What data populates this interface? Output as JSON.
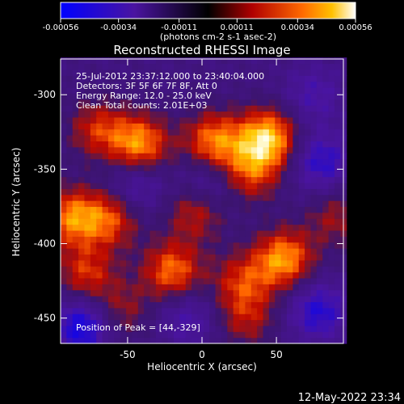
{
  "chart_data": {
    "type": "heatmap",
    "title": "Reconstructed RHESSI Image",
    "xlabel": "Heliocentric X (arcsec)",
    "ylabel": "Heliocentric Y (arcsec)",
    "xlim": [
      -95,
      95
    ],
    "ylim": [
      -467,
      -276
    ],
    "x_ticks": [
      -50,
      0,
      50
    ],
    "y_ticks": [
      -300,
      -350,
      -400,
      -450
    ],
    "colorbar": {
      "ticks": [
        "-0.00056",
        "-0.00034",
        "-0.00011",
        "0.00011",
        "0.00034",
        "0.00056"
      ],
      "unit_label": "(photons cm-2 s-1 asec-2)",
      "range": [
        -0.00056,
        0.00056
      ]
    },
    "annotations": [
      "25-Jul-2012 23:37:12.000 to 23:40:04.000",
      "Detectors: 3F 5F 6F 7F 8F, Att 0",
      "Energy Range: 12.0 - 25.0 keV",
      "Clean     Total counts: 2.01E+03"
    ],
    "peak_label": "Position of Peak = [44,-329]",
    "blobs": [
      {
        "x": 44,
        "y": -329,
        "value": 0.00056
      },
      {
        "x": -42,
        "y": -333,
        "value": 0.00048
      },
      {
        "x": 8,
        "y": -331,
        "value": 0.00044
      },
      {
        "x": 32,
        "y": -352,
        "value": 0.00034
      },
      {
        "x": -70,
        "y": -323,
        "value": 0.0003
      },
      {
        "x": -88,
        "y": -382,
        "value": 0.00042
      },
      {
        "x": -62,
        "y": -383,
        "value": 0.00036
      },
      {
        "x": -4,
        "y": -378,
        "value": 0.0003
      },
      {
        "x": 55,
        "y": -410,
        "value": 0.00048
      },
      {
        "x": -20,
        "y": -418,
        "value": 0.00042
      },
      {
        "x": -78,
        "y": -420,
        "value": 0.00032
      },
      {
        "x": -55,
        "y": -445,
        "value": 0.00022
      },
      {
        "x": 27,
        "y": -425,
        "value": 0.0003
      },
      {
        "x": 90,
        "y": -382,
        "value": 0.00022
      },
      {
        "x": 30,
        "y": -450,
        "value": 0.00024
      }
    ],
    "dips": [
      {
        "x": -80,
        "y": -455,
        "value": -0.0004
      },
      {
        "x": -45,
        "y": -360,
        "value": -0.00022
      },
      {
        "x": 5,
        "y": -360,
        "value": -0.00022
      },
      {
        "x": 80,
        "y": -345,
        "value": -0.0003
      },
      {
        "x": 78,
        "y": -445,
        "value": -0.00032
      },
      {
        "x": -10,
        "y": -450,
        "value": -0.0002
      },
      {
        "x": 75,
        "y": -300,
        "value": -0.0002
      }
    ]
  },
  "footer_date": "12-May-2022 23:34"
}
